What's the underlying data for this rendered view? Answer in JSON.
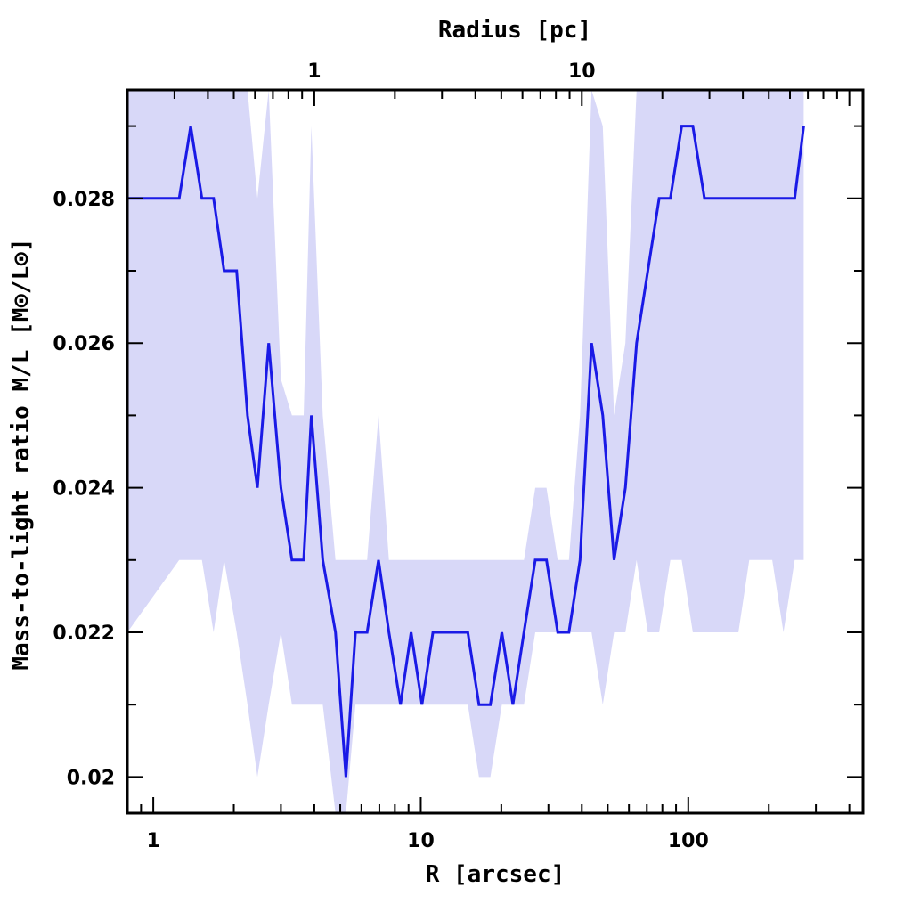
{
  "chart_data": {
    "type": "line",
    "xlabel": "R [arcsec]",
    "x2label": "Radius [pc]",
    "ylabel": "Mass-to-light ratio M/L [M⊙/L⊙]",
    "xscale": "log",
    "xlim": [
      0.8,
      450
    ],
    "ylim": [
      0.0195,
      0.0295
    ],
    "x_ticks": [
      1,
      10,
      100
    ],
    "x_tick_labels": [
      "1",
      "10",
      "100"
    ],
    "y_ticks": [
      0.02,
      0.022,
      0.024,
      0.026,
      0.028
    ],
    "y_tick_labels": [
      "0.02",
      "0.022",
      "0.024",
      "0.026",
      "0.028"
    ],
    "x2_ticks_arcsec": [
      4.0,
      40.0
    ],
    "x2_tick_labels": [
      "1",
      "10"
    ],
    "grid": false,
    "colors": {
      "line": "#1a1ae6",
      "band": "#d8d8f8"
    },
    "series": [
      {
        "x": [
          0.8,
          1.25,
          1.38,
          1.52,
          1.68,
          1.84,
          2.05,
          2.25,
          2.45,
          2.7,
          3.0,
          3.3,
          3.65,
          3.9,
          4.3,
          4.8,
          5.25,
          5.7,
          6.3,
          6.95,
          7.6,
          8.4,
          9.2,
          10.1,
          11.1,
          12.3,
          13.5,
          15.0,
          16.5,
          18.2,
          20.1,
          22.1,
          24.3,
          26.8,
          29.5,
          32.5,
          35.8,
          39.4,
          43.5,
          47.9,
          52.8,
          58.2,
          64.1,
          70.6,
          77.8,
          85.7,
          94.5,
          104,
          115,
          126,
          139,
          154,
          169,
          187,
          206,
          227,
          250,
          270
        ],
        "y": [
          0.028,
          0.028,
          0.029,
          0.028,
          0.028,
          0.027,
          0.027,
          0.025,
          0.024,
          0.026,
          0.024,
          0.023,
          0.023,
          0.025,
          0.023,
          0.022,
          0.02,
          0.022,
          0.022,
          0.023,
          0.022,
          0.021,
          0.022,
          0.021,
          0.022,
          0.022,
          0.022,
          0.022,
          0.021,
          0.021,
          0.022,
          0.021,
          0.022,
          0.023,
          0.023,
          0.022,
          0.022,
          0.023,
          0.026,
          0.025,
          0.023,
          0.024,
          0.026,
          0.027,
          0.028,
          0.028,
          0.029,
          0.029,
          0.028,
          0.028,
          0.028,
          0.028,
          0.028,
          0.028,
          0.028,
          0.028,
          0.028,
          0.029
        ],
        "upper": [
          0.0295,
          0.0295,
          0.0295,
          0.0295,
          0.0295,
          0.0295,
          0.0295,
          0.0295,
          0.028,
          0.0295,
          0.0255,
          0.025,
          0.025,
          0.029,
          0.025,
          0.023,
          0.023,
          0.023,
          0.023,
          0.025,
          0.023,
          0.023,
          0.023,
          0.023,
          0.023,
          0.023,
          0.023,
          0.023,
          0.023,
          0.023,
          0.023,
          0.023,
          0.023,
          0.024,
          0.024,
          0.023,
          0.023,
          0.025,
          0.0295,
          0.029,
          0.025,
          0.026,
          0.0295,
          0.0295,
          0.0295,
          0.0295,
          0.0295,
          0.0295,
          0.0295,
          0.0295,
          0.0295,
          0.0295,
          0.0295,
          0.0295,
          0.0295,
          0.0295,
          0.0295,
          0.0295
        ],
        "lower": [
          0.022,
          0.023,
          0.023,
          0.023,
          0.022,
          0.023,
          0.022,
          0.021,
          0.02,
          0.021,
          0.022,
          0.021,
          0.021,
          0.021,
          0.021,
          0.0195,
          0.0195,
          0.021,
          0.021,
          0.021,
          0.021,
          0.021,
          0.021,
          0.021,
          0.021,
          0.021,
          0.021,
          0.021,
          0.02,
          0.02,
          0.021,
          0.021,
          0.021,
          0.022,
          0.022,
          0.022,
          0.022,
          0.022,
          0.022,
          0.021,
          0.022,
          0.022,
          0.023,
          0.022,
          0.022,
          0.023,
          0.023,
          0.022,
          0.022,
          0.022,
          0.022,
          0.022,
          0.023,
          0.023,
          0.023,
          0.022,
          0.023,
          0.023
        ]
      }
    ]
  }
}
